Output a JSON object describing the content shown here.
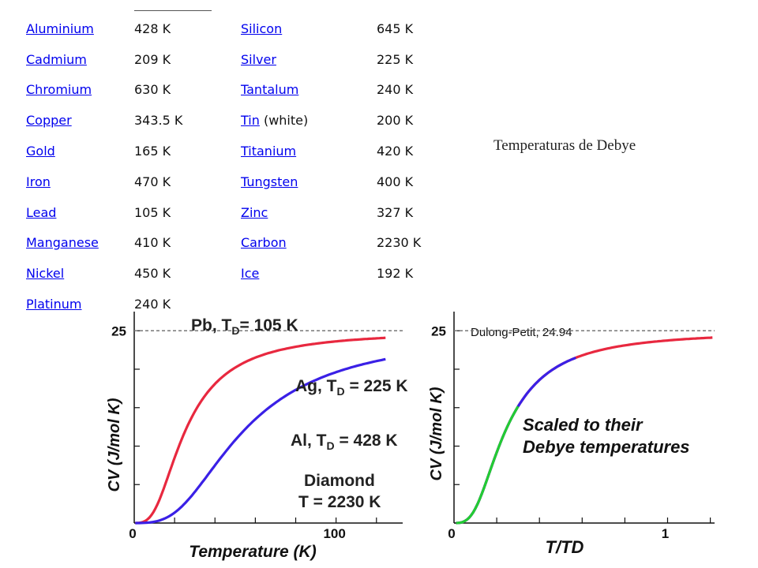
{
  "table": {
    "rows": [
      {
        "e1": "Aluminium",
        "t1": "428 K",
        "e2": "Silicon",
        "s2": "",
        "t2": "645 K"
      },
      {
        "e1": "Cadmium",
        "t1": "209 K",
        "e2": "Silver",
        "s2": "",
        "t2": "225 K"
      },
      {
        "e1": "Chromium",
        "t1": "630 K",
        "e2": "Tantalum",
        "s2": "",
        "t2": "240 K"
      },
      {
        "e1": "Copper",
        "t1": "343.5 K",
        "e2": "Tin",
        "s2": " (white)",
        "t2": "200 K"
      },
      {
        "e1": "Gold",
        "t1": "165 K",
        "e2": "Titanium",
        "s2": "",
        "t2": "420 K"
      },
      {
        "e1": "Iron",
        "t1": "470 K",
        "e2": "Tungsten",
        "s2": "",
        "t2": "400 K"
      },
      {
        "e1": "Lead",
        "t1": "105 K",
        "e2": "Zinc",
        "s2": "",
        "t2": "327 K"
      },
      {
        "e1": "Manganese",
        "t1": "410 K",
        "e2": "Carbon",
        "s2": "",
        "t2": "2230 K"
      },
      {
        "e1": "Nickel",
        "t1": "450 K",
        "e2": "Ice",
        "s2": "",
        "t2": "192 K"
      },
      {
        "e1": "Platinum",
        "t1": "240 K",
        "e2": "",
        "s2": "",
        "t2": ""
      }
    ]
  },
  "caption": "Temperaturas de Debye",
  "chart_data": [
    {
      "type": "line",
      "xlabel": "Temperature (K)",
      "ylabel": "CV (J/mol K)",
      "xlim": [
        0,
        133
      ],
      "ylim": [
        0,
        28
      ],
      "x_ticks": [
        0,
        100
      ],
      "y_ticks": [
        25
      ],
      "reference_line": {
        "y": 25,
        "style": "dashed"
      },
      "series": [
        {
          "name": "Pb, TD= 105 K",
          "color": "#e8283f",
          "theta": 105
        },
        {
          "name": "Ag, TD= 225 K",
          "color": "#3a20e6",
          "theta": 225
        },
        {
          "name": "Al, TD= 428 K",
          "color": "#22cc33",
          "theta": 428
        },
        {
          "name": "Diamond T = 2230 K",
          "color": "#9a9a9a",
          "theta": 2230
        }
      ],
      "labels": {
        "pb": {
          "main": "Pb, T",
          "sub": "D",
          "rest": "= 105 K"
        },
        "ag": {
          "main": "Ag, T",
          "sub": "D",
          "rest": " = 225 K"
        },
        "al": {
          "main": "Al, T",
          "sub": "D",
          "rest": " = 428 K"
        },
        "diamond": {
          "line1": "Diamond",
          "line2": "T  = 2230 K"
        }
      }
    },
    {
      "type": "line",
      "xlabel": "T/TD",
      "ylabel": "CV (J/mol K)",
      "xlim": [
        0,
        1.22
      ],
      "ylim": [
        0,
        28
      ],
      "x_ticks": [
        0,
        1
      ],
      "y_ticks": [
        25
      ],
      "reference_line": {
        "y": 25,
        "label": "Dulong-Petit, 24.94",
        "style": "dashed"
      },
      "annotation": [
        "Scaled to their",
        "Debye temperatures"
      ],
      "series": [
        {
          "name": "Pb",
          "color": "#e8283f",
          "xmax": 1.22
        },
        {
          "name": "Ag",
          "color": "#3a20e6",
          "xmax": 0.58
        },
        {
          "name": "Al",
          "color": "#22cc33",
          "xmax": 0.31
        }
      ]
    }
  ]
}
